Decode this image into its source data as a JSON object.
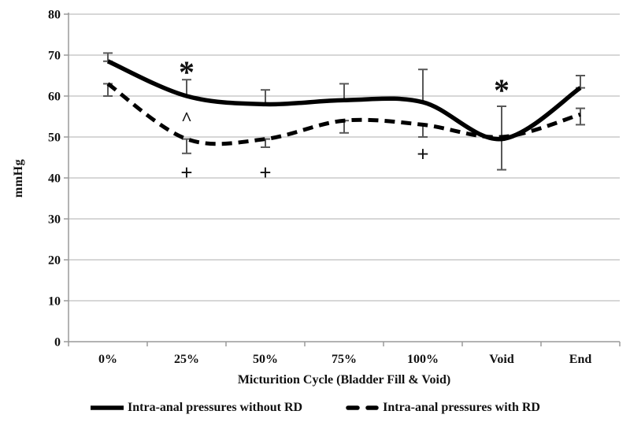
{
  "chart_data": {
    "type": "line",
    "title": "",
    "xlabel": "Micturition Cycle (Bladder Fill & Void)",
    "ylabel": "mmHg",
    "ylim": [
      0,
      80
    ],
    "ytick_step": 10,
    "grid": true,
    "legend_position": "bottom",
    "categories": [
      "0%",
      "25%",
      "50%",
      "75%",
      "100%",
      "Void",
      "End"
    ],
    "series": [
      {
        "name": "Intra-anal pressures without RD",
        "style": "solid",
        "values": [
          68.5,
          60,
          58,
          59,
          58.5,
          49.5,
          62
        ],
        "error_bars": [
          [
            68.5,
            70.5
          ],
          [
            60,
            64
          ],
          [
            58,
            61.5
          ],
          [
            59,
            63
          ],
          [
            58.5,
            66.5
          ],
          [
            42,
            57.5
          ],
          [
            62,
            65
          ]
        ]
      },
      {
        "name": "Intra-anal pressures with RD",
        "style": "dashed",
        "values": [
          63,
          49.5,
          49.5,
          54,
          53,
          50,
          55.5
        ],
        "error_bars": [
          [
            60,
            63
          ],
          [
            46,
            49.5
          ],
          [
            47.5,
            49.5
          ],
          [
            51,
            54
          ],
          [
            50,
            53
          ],
          null,
          [
            53,
            57
          ]
        ]
      }
    ],
    "annotations": [
      {
        "symbol": "*",
        "category": "25%",
        "value": 67
      },
      {
        "symbol": "^",
        "category": "25%",
        "value": 55.5
      },
      {
        "symbol": "+",
        "category": "25%",
        "value": 41.5
      },
      {
        "symbol": "+",
        "category": "50%",
        "value": 41.5
      },
      {
        "symbol": "+",
        "category": "100%",
        "value": 46
      },
      {
        "symbol": "*",
        "category": "Void",
        "value": 62.5
      }
    ],
    "colors": {
      "line": "#000000",
      "grid": "#bfbfbf",
      "axis": "#9a9a9a",
      "error_bar": "#595959",
      "text": "#111111"
    }
  }
}
